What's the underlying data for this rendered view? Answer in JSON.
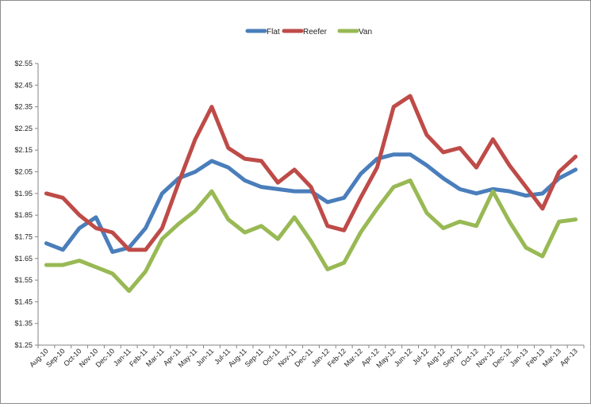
{
  "chart_data": {
    "type": "line",
    "title": "",
    "xlabel": "",
    "ylabel": "",
    "ylim": [
      1.25,
      2.55
    ],
    "y_ticks": [
      "$2.55",
      "$2.45",
      "$2.35",
      "$2.25",
      "$2.15",
      "$2.05",
      "$1.95",
      "$1.85",
      "$1.75",
      "$1.65",
      "$1.55",
      "$1.45",
      "$1.35",
      "$1.25"
    ],
    "y_tick_values": [
      2.55,
      2.45,
      2.35,
      2.25,
      2.15,
      2.05,
      1.95,
      1.85,
      1.75,
      1.65,
      1.55,
      1.45,
      1.35,
      1.25
    ],
    "grid": false,
    "legend_position": "top",
    "categories": [
      "Aug-10",
      "Sep-10",
      "Oct-10",
      "Nov-10",
      "Dec-10",
      "Jan-11",
      "Feb-11",
      "Mar-11",
      "Apr-11",
      "May-11",
      "Jun-11",
      "Jul-11",
      "Aug-11",
      "Sep-11",
      "Oct-11",
      "Nov-11",
      "Dec-11",
      "Jan-12",
      "Feb-12",
      "Mar-12",
      "Apr-12",
      "May-12",
      "Jun-12",
      "Jul-12",
      "Aug-12",
      "Sep-12",
      "Oct-12",
      "Nov-12",
      "Dec-12",
      "Jan-13",
      "Feb-13",
      "Mar-13",
      "Apr-13"
    ],
    "series": [
      {
        "name": "Flat",
        "color": "#4a7ebb",
        "values": [
          1.72,
          1.69,
          1.79,
          1.84,
          1.68,
          1.7,
          1.79,
          1.95,
          2.02,
          2.05,
          2.1,
          2.07,
          2.01,
          1.98,
          1.97,
          1.96,
          1.96,
          1.91,
          1.93,
          2.04,
          2.11,
          2.13,
          2.13,
          2.08,
          2.02,
          1.97,
          1.95,
          1.97,
          1.96,
          1.94,
          1.95,
          2.02,
          2.06
        ]
      },
      {
        "name": "Reefer",
        "color": "#be4b48",
        "values": [
          1.95,
          1.93,
          1.85,
          1.79,
          1.77,
          1.69,
          1.69,
          1.79,
          2.0,
          2.2,
          2.35,
          2.16,
          2.11,
          2.1,
          2.0,
          2.06,
          1.98,
          1.8,
          1.78,
          1.93,
          2.07,
          2.35,
          2.4,
          2.22,
          2.14,
          2.16,
          2.07,
          2.2,
          2.08,
          1.98,
          1.88,
          2.05,
          2.12
        ]
      },
      {
        "name": "Van",
        "color": "#98b954",
        "values": [
          1.62,
          1.62,
          1.64,
          1.61,
          1.58,
          1.5,
          1.59,
          1.74,
          1.81,
          1.87,
          1.96,
          1.83,
          1.77,
          1.8,
          1.74,
          1.84,
          1.73,
          1.6,
          1.63,
          1.77,
          1.88,
          1.98,
          2.01,
          1.86,
          1.79,
          1.82,
          1.8,
          1.96,
          1.82,
          1.7,
          1.66,
          1.82,
          1.83
        ]
      }
    ]
  }
}
